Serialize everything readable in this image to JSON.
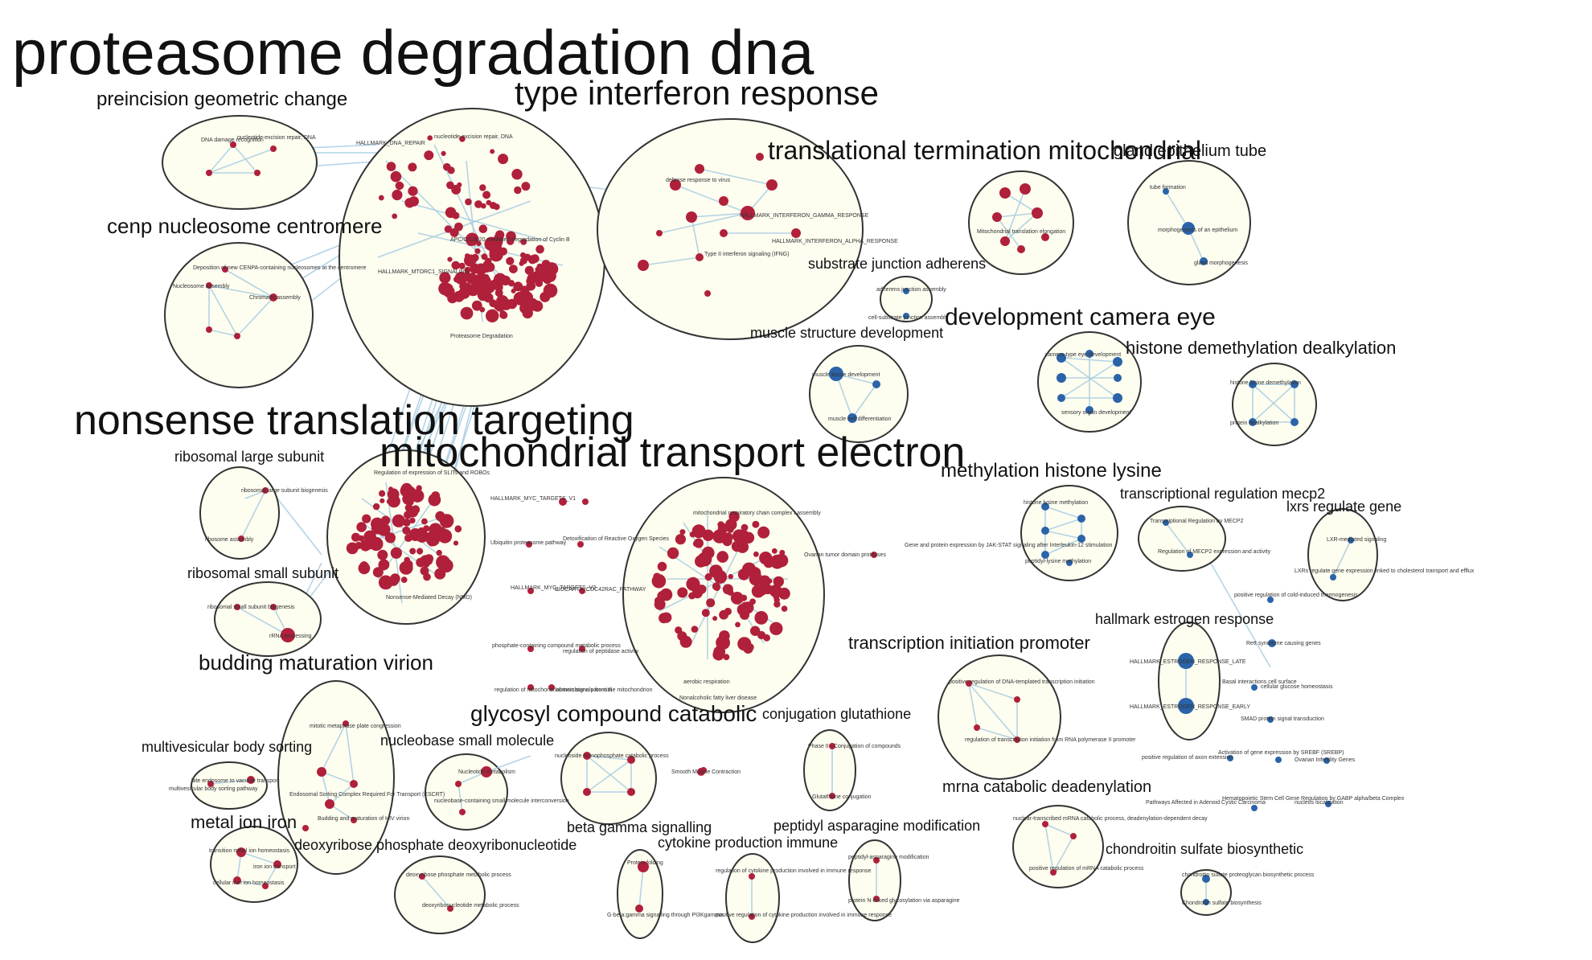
{
  "title": "proteasome degradation dna",
  "colors": {
    "red_node": "#b0203a",
    "blue_node": "#2a63a8",
    "edge": "#a8cde2",
    "cluster_fill": "#fdfdf0"
  },
  "labels": {
    "preincision": "preincision geometric change",
    "interferon": "type interferon response",
    "translational_termination": "translational termination mitochondrial",
    "gland": "gland epithelium tube",
    "cenp": "cenp nucleosome centromere",
    "substrate": "substrate junction adherens",
    "development_camera": "development camera eye",
    "muscle": "muscle structure development",
    "histone_demethylation": "histone demethylation dealkylation",
    "nonsense": "nonsense translation targeting",
    "mito_transport": "mitochondrial transport electron",
    "ribosomal_large": "ribosomal large subunit",
    "methylation": "methylation histone lysine",
    "mecp2": "transcriptional regulation mecp2",
    "lxrs": "lxrs regulate gene",
    "ribosomal_small": "ribosomal small subunit",
    "estrogen": "hallmark estrogen response",
    "transcription_init": "transcription initiation promoter",
    "budding": "budding maturation virion",
    "glycosyl": "glycosyl compound catabolic",
    "glutathione": "conjugation glutathione",
    "multivesicular": "multivesicular body sorting",
    "nucleobase": "nucleobase small molecule",
    "mrna": "mrna catabolic deadenylation",
    "metal_ion": "metal ion iron",
    "beta_gamma": "beta gamma signalling",
    "peptidyl": "peptidyl asparagine modification",
    "deoxyribose": "deoxyribose phosphate deoxyribonucleotide",
    "cytokine": "cytokine production immune",
    "chondroitin": "chondroitin sulfate biosynthetic"
  },
  "node_text": {
    "dna_damage": "DNA damage recognition",
    "nucleotide_excision": "nucleotide-excision repair, DNA",
    "hallmark_dna_repair": "HALLMARK_DNA_REPAIR",
    "hallmark_mtorc1": "HALLMARK_MTORC1_SIGNALING",
    "apc_c": "APC/C:Cdc20 mediated degradation of Cyclin B",
    "proteasome_rsv": "Proteasome Degradation",
    "defense_virus": "defense response to virus",
    "hallmark_ifn_gamma": "HALLMARK_INTERFERON_GAMMA_RESPONSE",
    "hallmark_ifn_alpha": "HALLMARK_INTERFERON_ALPHA_RESPONSE",
    "type_ii_ifn": "Type II interferon signaling (IFNG)",
    "mito_translation": "Mitochondrial translation elongation",
    "morphogenesis": "morphogenesis of an epithelium",
    "tube_formation": "tube formation",
    "gland_morph": "gland morphogenesis",
    "cenpa": "Deposition of new CENPA-containing nucleosomes at the centromere",
    "nucleosome": "Nucleosome assembly",
    "chromatin": "Chromatin assembly",
    "adherens": "adherens junction assembly",
    "cell_substrate": "cell-substrate junction assembly",
    "camera_eye": "camera-type eye development",
    "sensory_organ": "sensory organ development",
    "muscle_tissue": "muscle tissue development",
    "muscle_cell": "muscle cell differentiation",
    "histone_lysine_demeth": "histone lysine demethylation",
    "protein_dealkylation": "protein dealkylation",
    "hallmark_myc": "HALLMARK_MYC_TARGETS_V1",
    "slits": "Regulation of expression of SLITs and ROBOs",
    "nmd": "Nonsense-Mediated Decay (NMD)",
    "ribosomal_large_bio": "ribosomal large subunit biogenesis",
    "ribosome_assembly": "ribosome assembly",
    "ribosomal_small_bio": "ribosomal small subunit biogenesis",
    "rrna": "rRNA processing",
    "hallmark_oxphos": "HALLMARK_OXIDATIVE_PHOSPHORYLATION",
    "mito_resp_chain": "mitochondrial respiratory chain complex I assembly",
    "aerobic_resp": "aerobic respiration",
    "neurodegen": "Nonalcoholic fatty liver disease",
    "ovarian_tumor": "Ovarian tumor domain proteases",
    "gene_expr_jak": "Gene and protein expression by JAK-STAT signaling after Interleukin-12 stimulation",
    "ubiquitin": "Ubiquitin proteasome pathway",
    "detox_ros": "Detoxification of Reactive Oxygen Species",
    "hallmark_myc_mini": "HALLMARK_MYC_TARGETS_V2",
    "biocarta": "BIOCARTA_CDC42RAC_PATHWAY",
    "phosphate_met": "phosphate-containing compound metabolic process",
    "peptidase": "regulation of peptidase activity",
    "mem_potential": "regulation of mitochondrial membrane potential",
    "intrinsic_apoptotic": "Intrinsic signals from the mitochondrion",
    "histone_lysine_meth": "histone lysine methylation",
    "peptidyl_lysine": "peptidyl-lysine methylation",
    "mecp2_node": "Transcriptional Regulation by MECP2",
    "mecp2_expr": "Regulation of MECP2 expression and activity",
    "lxr_mediated": "LXR-mediated signaling",
    "lxr_regulate": "LXRs regulate gene expression linked to cholesterol transport and efflux",
    "lipid_induced": "positive regulation of cold-induced thermogenesis",
    "retinol": "Rett syndrome causing genes",
    "estrogen_late": "HALLMARK_ESTROGEN_RESPONSE_LATE",
    "estrogen_early": "HALLMARK_ESTROGEN_RESPONSE_EARLY",
    "basal_glucose": "cellular glucose homeostasis",
    "basal_interact": "Basal interactions cell surface",
    "smad": "SMAD protein signal transduction",
    "axon_ext": "positive regulation of axon extension",
    "srebf": "Activation of gene expression by SREBF (SREBP)",
    "ovarian_inf": "Ovarian Infertility Genes",
    "nucleus_loc": "nucleus localization",
    "adenoid": "Pathways Affected in Adenoid Cystic Carcinoma",
    "hematopoietic": "Hematopoietic Stem Cell Gene Regulation by GABP alpha/beta Complex",
    "dna_templated": "positive regulation of DNA-templated transcription initiation",
    "rna_pol2": "regulation of transcription initiation from RNA polymerase II promoter",
    "virion_escrt": "Endosomal Sorting Complex Required For Transport (ESCRT)",
    "mitotic_meta": "mitotic metaphase plate congression",
    "hiv_release": "Budding and maturation of HIV virion",
    "nucleotide_catab": "nucleoside monophosphate catabolic process",
    "smooth_muscle": "Smooth Muscle Contraction",
    "phase_ii": "Phase II - Conjugation of compounds",
    "glutathione_conj": "Glutathione conjugation",
    "late_endosome": "late endosome to vacuole transport",
    "multivesicular_path": "multivesicular body sorting pathway",
    "nucleotide_metabolism": "Nucleotide metabolism",
    "nucleobase_cont": "nucleobase-containing small molecule interconversion",
    "mrna_deadenyl": "nuclear-transcribed mRNA catabolic process, deadenylation-dependent decay",
    "mrna_catab": "positive regulation of mRNA catabolic process",
    "transition_metal": "transition metal ion homeostasis",
    "iron_uptake": "iron ion transport",
    "cellular_iron": "cellular iron ion homeostasis",
    "protein_folding": "Protein folding",
    "g_beta_gamma": "G-beta:gamma signalling through PI3Kgamma",
    "peptidyl_asn": "peptidyl-asparagine modification",
    "protein_n_linked": "protein N-linked glycosylation via asparagine",
    "deoxyribose_met": "deoxyribose phosphate metabolic process",
    "deoxyribonucleotide": "deoxyribonucleotide metabolic process",
    "cytokine_reg": "regulation of cytokine production involved in immune response",
    "cytokine_pos": "positive regulation of cytokine production involved in immune response",
    "chondroitin_bio": "chondroitin sulfate proteoglycan biosynthetic process",
    "chondroitin_sulfate": "Chondroitin sulfate biosynthesis"
  }
}
